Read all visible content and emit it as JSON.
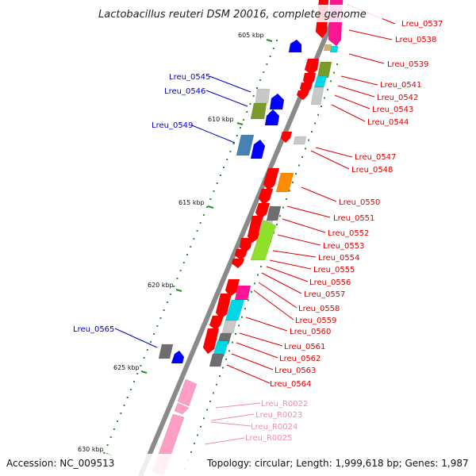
{
  "title": "Lactobacillus reuteri DSM 20016, complete genome",
  "footer": {
    "accession": "Accession: NC_009513",
    "topology": "Topology: circular; Length: 1,999,618 bp; Genes: 1,987"
  },
  "colors": {
    "backbone": "#8a8a8a",
    "tick": "#2e8b2e",
    "plus_label": "#0000cc",
    "minus_label": "#dd0000",
    "rna_label": "#f08cb4",
    "gene_red": "#ff0000",
    "gene_blue": "#0000ff",
    "gene_grey": "#c8c8c8",
    "gene_darkgrey": "#6e6e6e",
    "gene_olive": "#7a9a2a",
    "gene_lime": "#8ee02a",
    "gene_cyan": "#00d8e8",
    "gene_magenta": "#ff1493",
    "gene_orange": "#ff8c00",
    "gene_steel": "#4682b4",
    "gene_pink": "#ff9ec4",
    "gene_tan": "#c8b46e"
  },
  "kbp_markers": [
    "605 kbp",
    "610 kbp",
    "615 kbp",
    "620 kbp",
    "625 kbp",
    "630 kbp"
  ],
  "plus_labels": [
    "Lreu_0545",
    "Lreu_0546",
    "Lreu_0549",
    "Lreu_0565"
  ],
  "minus_labels": [
    "Lreu_0537",
    "Lreu_0538",
    "Lreu_0539",
    "Lreu_0541",
    "Lreu_0542",
    "Lreu_0543",
    "Lreu_0544",
    "Lreu_0547",
    "Lreu_0548",
    "Lreu_0550",
    "Lreu_0551",
    "Lreu_0552",
    "Lreu_0553",
    "Lreu_0554",
    "Lreu_0555",
    "Lreu_0556",
    "Lreu_0557",
    "Lreu_0558",
    "Lreu_0559",
    "Lreu_0560",
    "Lreu_0561",
    "Lreu_0562",
    "Lreu_0563",
    "Lreu_0564"
  ],
  "rna_labels": [
    "Lreu_R0022",
    "Lreu_R0023",
    "Lreu_R0024",
    "Lreu_R0025"
  ]
}
